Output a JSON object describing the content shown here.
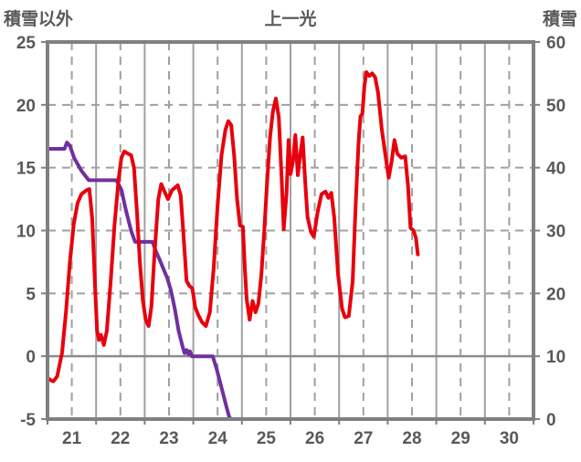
{
  "header": {
    "left_axis_title": "積雪以外",
    "title": "上一光",
    "right_axis_title": "積雪"
  },
  "colors": {
    "temperature_line": "#e8000d",
    "snow_line": "#7030a0",
    "grid": "#a0a0a0",
    "zero_line": "#8c8c8c",
    "border": "#808080",
    "label_text": "#595959",
    "background": "#ffffff"
  },
  "chart_data": {
    "type": "line",
    "title": "上一光",
    "x_range": [
      21,
      31
    ],
    "x_tick_labels": [
      "21",
      "22",
      "23",
      "24",
      "25",
      "26",
      "27",
      "28",
      "29",
      "30"
    ],
    "x_label_positions": [
      21.5,
      22.5,
      23.5,
      24.5,
      25.5,
      26.5,
      27.5,
      28.5,
      29.5,
      30.5
    ],
    "grid": {
      "vertical_solid_days": [
        22,
        23,
        24,
        25,
        26,
        27,
        28,
        29,
        30
      ],
      "vertical_dashed_days": [
        21.5,
        22.5,
        23.5,
        24.5,
        25.5,
        26.5,
        27.5,
        28.5,
        29.5,
        30.5
      ],
      "horizontal_dashed_left_values": [
        20,
        15,
        10,
        5
      ],
      "zero_line_left_value": 0
    },
    "left_axis": {
      "title": "積雪以外",
      "range": [
        -5,
        25
      ],
      "ticks": [
        25,
        20,
        15,
        10,
        5,
        0,
        -5
      ]
    },
    "right_axis": {
      "title": "積雪",
      "range": [
        0,
        60
      ],
      "ticks": [
        60,
        50,
        40,
        30,
        20,
        10,
        0
      ]
    },
    "legend_position": "none",
    "series": [
      {
        "name": "積雪以外",
        "axis": "left",
        "color": "#e8000d",
        "points": [
          [
            21.0,
            -1.7
          ],
          [
            21.06,
            -1.9
          ],
          [
            21.12,
            -2.0
          ],
          [
            21.2,
            -1.6
          ],
          [
            21.3,
            0.3
          ],
          [
            21.38,
            3.5
          ],
          [
            21.46,
            7.5
          ],
          [
            21.54,
            10.5
          ],
          [
            21.62,
            12.2
          ],
          [
            21.7,
            12.9
          ],
          [
            21.8,
            13.2
          ],
          [
            21.86,
            13.3
          ],
          [
            21.92,
            11.0
          ],
          [
            21.98,
            5.5
          ],
          [
            22.02,
            2.0
          ],
          [
            22.06,
            1.3
          ],
          [
            22.1,
            1.7
          ],
          [
            22.16,
            0.9
          ],
          [
            22.22,
            2.0
          ],
          [
            22.3,
            6.0
          ],
          [
            22.38,
            10.5
          ],
          [
            22.46,
            14.0
          ],
          [
            22.52,
            15.8
          ],
          [
            22.58,
            16.3
          ],
          [
            22.66,
            16.1
          ],
          [
            22.72,
            16.0
          ],
          [
            22.78,
            15.0
          ],
          [
            22.84,
            11.5
          ],
          [
            22.9,
            7.5
          ],
          [
            22.96,
            4.5
          ],
          [
            23.02,
            2.9
          ],
          [
            23.08,
            2.4
          ],
          [
            23.14,
            4.0
          ],
          [
            23.2,
            8.0
          ],
          [
            23.28,
            12.5
          ],
          [
            23.34,
            13.7
          ],
          [
            23.42,
            13.0
          ],
          [
            23.48,
            12.5
          ],
          [
            23.56,
            13.2
          ],
          [
            23.62,
            13.4
          ],
          [
            23.68,
            13.6
          ],
          [
            23.74,
            12.8
          ],
          [
            23.8,
            9.5
          ],
          [
            23.86,
            6.0
          ],
          [
            23.92,
            5.6
          ],
          [
            23.98,
            5.4
          ],
          [
            24.04,
            3.9
          ],
          [
            24.1,
            3.3
          ],
          [
            24.18,
            2.7
          ],
          [
            24.26,
            2.4
          ],
          [
            24.34,
            3.5
          ],
          [
            24.42,
            7.0
          ],
          [
            24.5,
            12.0
          ],
          [
            24.58,
            16.0
          ],
          [
            24.66,
            18.0
          ],
          [
            24.72,
            18.7
          ],
          [
            24.78,
            18.4
          ],
          [
            24.84,
            16.0
          ],
          [
            24.9,
            12.5
          ],
          [
            24.96,
            10.4
          ],
          [
            25.02,
            10.3
          ],
          [
            25.06,
            7.0
          ],
          [
            25.1,
            4.5
          ],
          [
            25.16,
            2.9
          ],
          [
            25.22,
            4.4
          ],
          [
            25.28,
            3.5
          ],
          [
            25.34,
            4.2
          ],
          [
            25.4,
            6.5
          ],
          [
            25.46,
            10.0
          ],
          [
            25.52,
            14.0
          ],
          [
            25.58,
            17.5
          ],
          [
            25.64,
            19.5
          ],
          [
            25.7,
            20.5
          ],
          [
            25.76,
            19.0
          ],
          [
            25.82,
            14.0
          ],
          [
            25.86,
            10.1
          ],
          [
            25.92,
            13.0
          ],
          [
            25.96,
            17.2
          ],
          [
            26.0,
            14.5
          ],
          [
            26.05,
            15.5
          ],
          [
            26.1,
            17.6
          ],
          [
            26.15,
            14.4
          ],
          [
            26.2,
            16.0
          ],
          [
            26.25,
            17.4
          ],
          [
            26.3,
            14.0
          ],
          [
            26.35,
            11.1
          ],
          [
            26.42,
            9.9
          ],
          [
            26.48,
            9.5
          ],
          [
            26.56,
            11.5
          ],
          [
            26.64,
            12.9
          ],
          [
            26.72,
            13.1
          ],
          [
            26.78,
            12.6
          ],
          [
            26.84,
            13.0
          ],
          [
            26.9,
            11.0
          ],
          [
            26.98,
            6.5
          ],
          [
            27.06,
            3.8
          ],
          [
            27.12,
            3.1
          ],
          [
            27.2,
            3.2
          ],
          [
            27.28,
            6.0
          ],
          [
            27.34,
            12.0
          ],
          [
            27.4,
            17.0
          ],
          [
            27.44,
            19.1
          ],
          [
            27.48,
            19.3
          ],
          [
            27.52,
            21.5
          ],
          [
            27.56,
            22.6
          ],
          [
            27.62,
            22.3
          ],
          [
            27.68,
            22.5
          ],
          [
            27.74,
            22.2
          ],
          [
            27.8,
            21.0
          ],
          [
            27.88,
            18.0
          ],
          [
            27.96,
            15.8
          ],
          [
            28.02,
            14.2
          ],
          [
            28.08,
            15.5
          ],
          [
            28.14,
            17.2
          ],
          [
            28.2,
            16.1
          ],
          [
            28.28,
            15.8
          ],
          [
            28.36,
            15.9
          ],
          [
            28.42,
            13.5
          ],
          [
            28.47,
            10.2
          ],
          [
            28.53,
            10.0
          ],
          [
            28.58,
            9.4
          ],
          [
            28.62,
            8.1
          ]
        ]
      },
      {
        "name": "積雪",
        "axis": "right",
        "color": "#7030a0",
        "points": [
          [
            21.0,
            43
          ],
          [
            21.35,
            43
          ],
          [
            21.4,
            44
          ],
          [
            21.46,
            43.5
          ],
          [
            21.55,
            41.5
          ],
          [
            21.7,
            39.5
          ],
          [
            21.85,
            38
          ],
          [
            22.42,
            38
          ],
          [
            22.52,
            36.5
          ],
          [
            22.62,
            33
          ],
          [
            22.72,
            30
          ],
          [
            22.8,
            28.2
          ],
          [
            23.16,
            28.2
          ],
          [
            23.24,
            26.5
          ],
          [
            23.3,
            25.5
          ],
          [
            23.38,
            24
          ],
          [
            23.46,
            22.5
          ],
          [
            23.54,
            20.5
          ],
          [
            23.62,
            17.5
          ],
          [
            23.7,
            14
          ],
          [
            23.78,
            11.5
          ],
          [
            23.82,
            10.5
          ],
          [
            23.86,
            11
          ],
          [
            23.9,
            10.3
          ],
          [
            23.93,
            10.8
          ],
          [
            23.97,
            10
          ],
          [
            24.4,
            10
          ],
          [
            24.48,
            8
          ],
          [
            24.58,
            5
          ],
          [
            24.68,
            2
          ],
          [
            24.74,
            0.3
          ],
          [
            24.78,
            0
          ],
          [
            28.6,
            0
          ]
        ]
      }
    ]
  }
}
